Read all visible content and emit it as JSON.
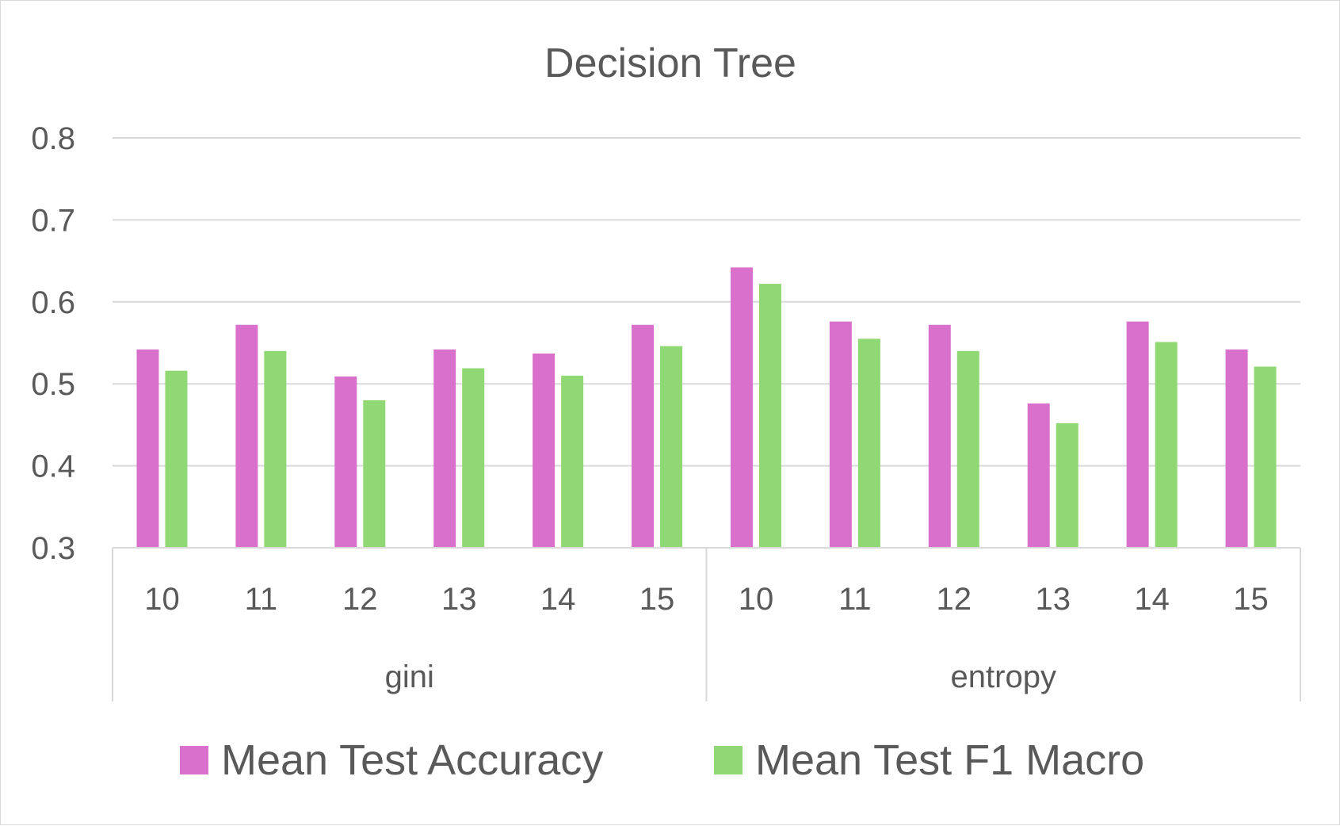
{
  "chart_data": {
    "type": "bar",
    "title": "Decision Tree",
    "xlabel": "",
    "ylabel": "",
    "ylim": [
      0.3,
      0.8
    ],
    "yticks": [
      "0.3",
      "0.4",
      "0.5",
      "0.6",
      "0.7",
      "0.8"
    ],
    "grid": true,
    "legend_position": "bottom",
    "groups": [
      {
        "name": "gini",
        "categories": [
          "10",
          "11",
          "12",
          "13",
          "14",
          "15"
        ]
      },
      {
        "name": "entropy",
        "categories": [
          "10",
          "11",
          "12",
          "13",
          "14",
          "15"
        ]
      }
    ],
    "series": [
      {
        "name": "Mean Test Accuracy",
        "color": "#d970cc",
        "values": [
          0.542,
          0.572,
          0.509,
          0.542,
          0.537,
          0.572,
          0.642,
          0.576,
          0.572,
          0.476,
          0.576,
          0.542
        ]
      },
      {
        "name": "Mean Test F1 Macro",
        "color": "#90d873",
        "values": [
          0.516,
          0.54,
          0.48,
          0.519,
          0.51,
          0.546,
          0.622,
          0.555,
          0.54,
          0.452,
          0.551,
          0.521
        ]
      }
    ]
  }
}
